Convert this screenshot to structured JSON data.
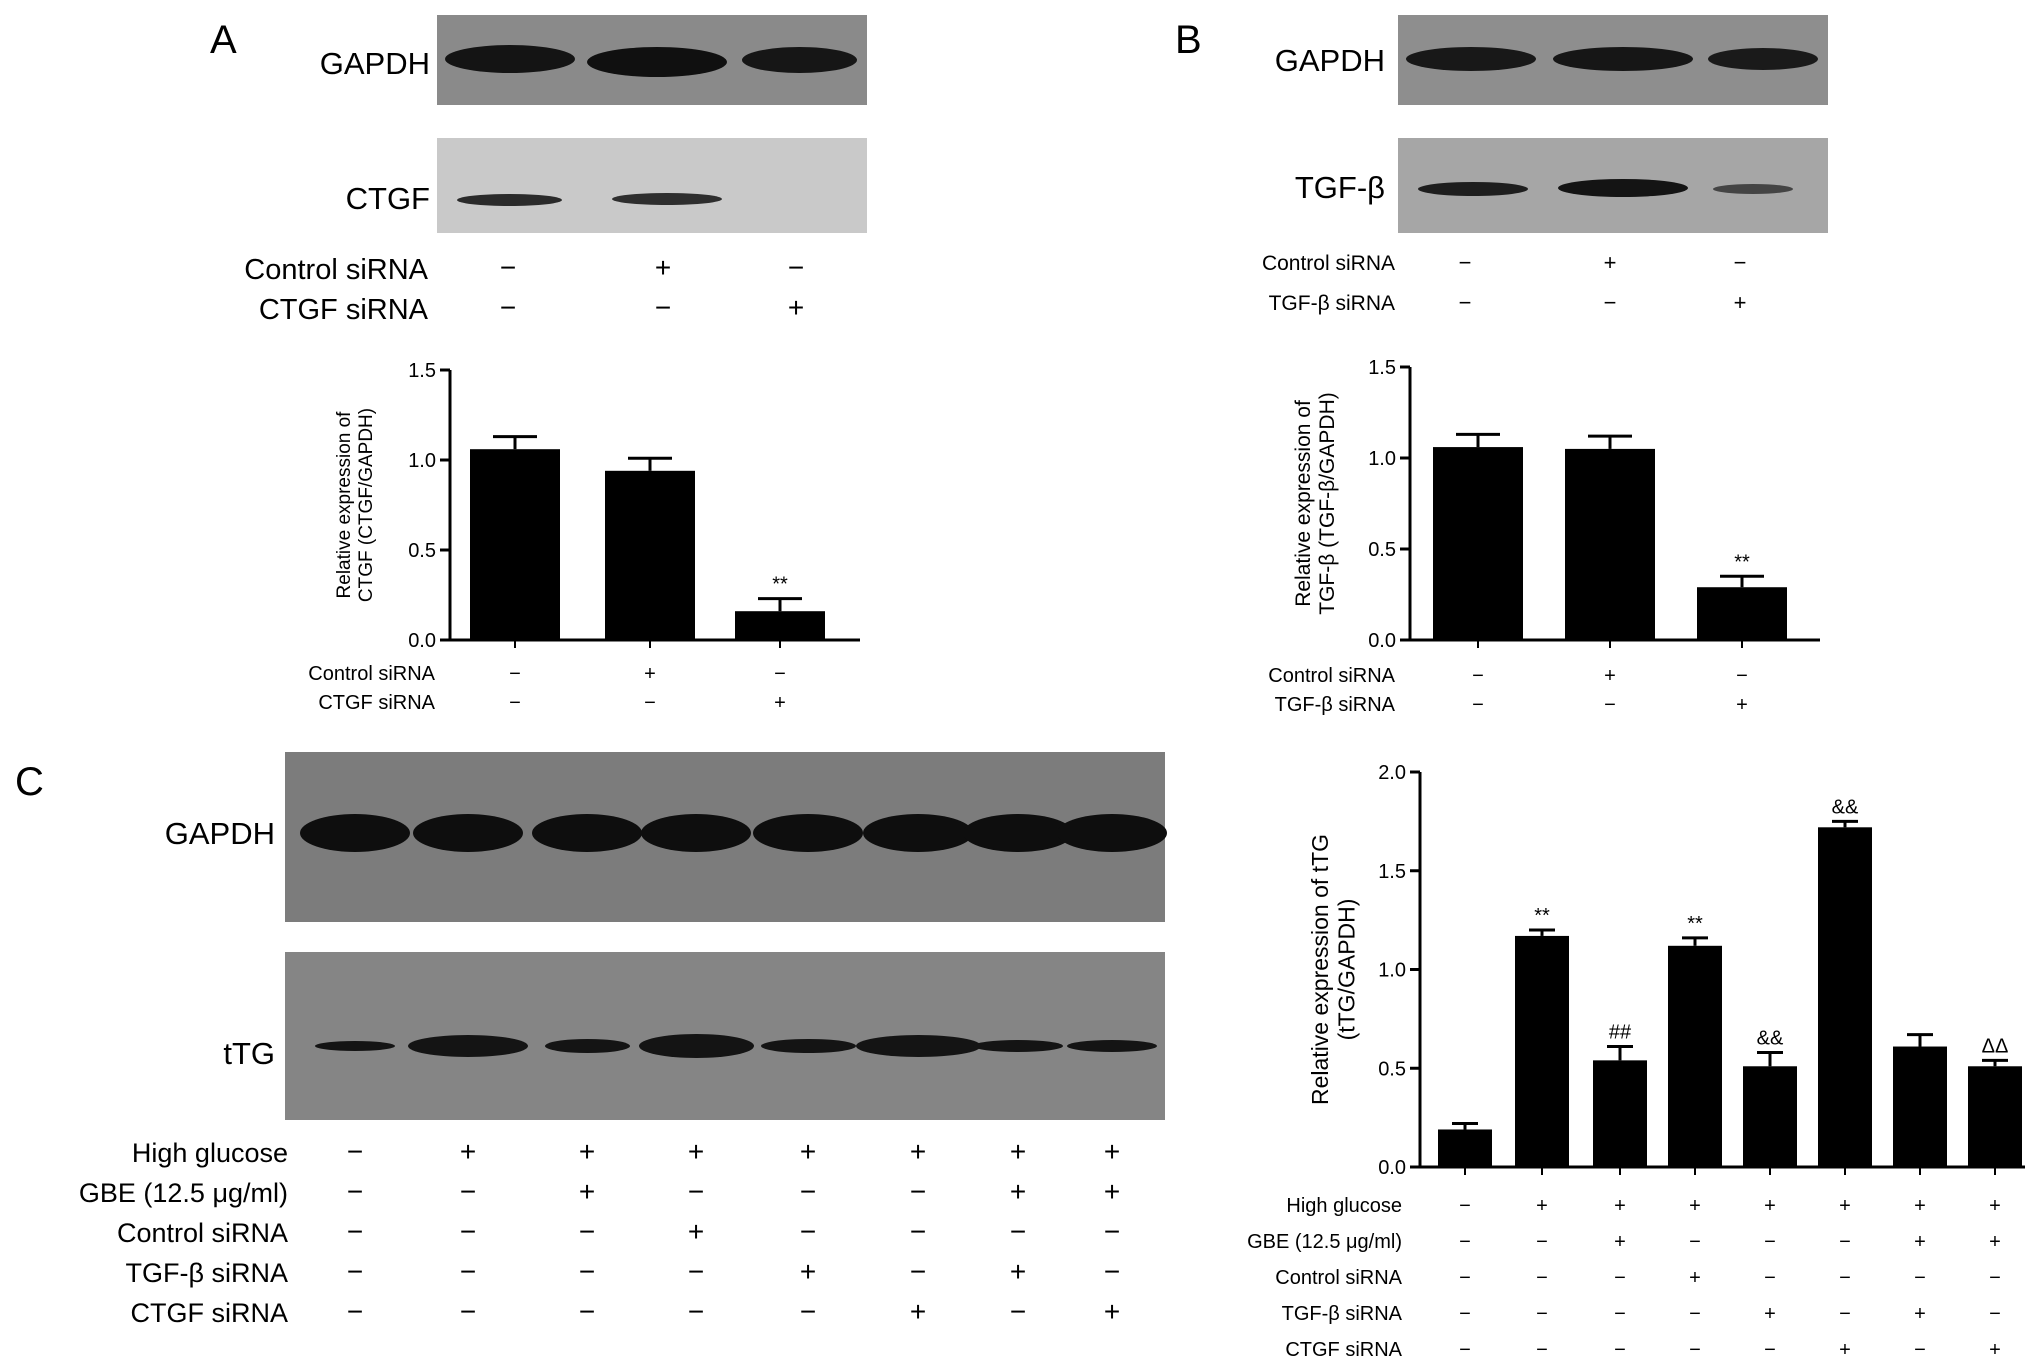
{
  "panels": {
    "A": {
      "letter": "A",
      "blot_labels": [
        "GAPDH",
        "CTGF"
      ],
      "conditions": [
        {
          "label": "Control siRNA",
          "signs": [
            "−",
            "+",
            "−"
          ]
        },
        {
          "label": "CTGF siRNA",
          "signs": [
            "−",
            "−",
            "+"
          ]
        }
      ]
    },
    "B": {
      "letter": "B",
      "blot_labels": [
        "GAPDH",
        "TGF-β"
      ],
      "conditions": [
        {
          "label": "Control siRNA",
          "signs": [
            "−",
            "+",
            "−"
          ]
        },
        {
          "label": "TGF-β siRNA",
          "signs": [
            "−",
            "−",
            "+"
          ]
        }
      ]
    },
    "C": {
      "letter": "C",
      "blot_labels": [
        "GAPDH",
        "tTG"
      ],
      "conditions": [
        {
          "label": "High glucose",
          "signs": [
            "−",
            "+",
            "+",
            "+",
            "+",
            "+",
            "+",
            "+"
          ]
        },
        {
          "label": "GBE (12.5 μg/ml)",
          "signs": [
            "−",
            "−",
            "+",
            "−",
            "−",
            "−",
            "+",
            "+"
          ]
        },
        {
          "label": "Control siRNA",
          "signs": [
            "−",
            "−",
            "−",
            "+",
            "−",
            "−",
            "−",
            "−"
          ]
        },
        {
          "label": "TGF-β siRNA",
          "signs": [
            "−",
            "−",
            "−",
            "−",
            "+",
            "−",
            "+",
            "−"
          ]
        },
        {
          "label": "CTGF siRNA",
          "signs": [
            "−",
            "−",
            "−",
            "−",
            "−",
            "+",
            "−",
            "+"
          ]
        }
      ]
    }
  },
  "chart_data": [
    {
      "type": "bar",
      "panel": "A",
      "ylabel_lines": [
        "Relative expression of",
        "CTGF (CTGF/GAPDH)"
      ],
      "ylim": [
        0,
        1.5
      ],
      "yticks": [
        "0.0",
        "0.5",
        "1.0",
        "1.5"
      ],
      "values": [
        1.06,
        0.94,
        0.16
      ],
      "errors": [
        0.07,
        0.07,
        0.07
      ],
      "annotations": [
        "",
        "",
        "**"
      ],
      "color": "#000000",
      "conditions": [
        {
          "label": "Control siRNA",
          "signs": [
            "−",
            "+",
            "−"
          ]
        },
        {
          "label": "CTGF siRNA",
          "signs": [
            "−",
            "−",
            "+"
          ]
        }
      ]
    },
    {
      "type": "bar",
      "panel": "B",
      "ylabel_lines": [
        "Relative expression of",
        "TGF-β (TGF-β/GAPDH)"
      ],
      "ylim": [
        0,
        1.5
      ],
      "yticks": [
        "0.0",
        "0.5",
        "1.0",
        "1.5"
      ],
      "values": [
        1.06,
        1.05,
        0.29
      ],
      "errors": [
        0.07,
        0.07,
        0.06
      ],
      "annotations": [
        "",
        "",
        "**"
      ],
      "color": "#000000",
      "conditions": [
        {
          "label": "Control siRNA",
          "signs": [
            "−",
            "+",
            "−"
          ]
        },
        {
          "label": "TGF-β siRNA",
          "signs": [
            "−",
            "−",
            "+"
          ]
        }
      ]
    },
    {
      "type": "bar",
      "panel": "C",
      "ylabel_lines": [
        "Relative expression of tTG",
        "(tTG/GAPDH)"
      ],
      "ylim": [
        0,
        2.0
      ],
      "yticks": [
        "0.0",
        "0.5",
        "1.0",
        "1.5",
        "2.0"
      ],
      "values": [
        0.19,
        1.17,
        0.54,
        1.12,
        0.51,
        1.72,
        0.61,
        0.51
      ],
      "errors": [
        0.03,
        0.03,
        0.07,
        0.04,
        0.07,
        0.03,
        0.06,
        0.03
      ],
      "annotations": [
        "",
        "**",
        "##",
        "**",
        "&&",
        "&&",
        "",
        "ΔΔ"
      ],
      "color": "#000000",
      "conditions": [
        {
          "label": "High glucose",
          "signs": [
            "−",
            "+",
            "+",
            "+",
            "+",
            "+",
            "+",
            "+"
          ]
        },
        {
          "label": "GBE (12.5 μg/ml)",
          "signs": [
            "−",
            "−",
            "+",
            "−",
            "−",
            "−",
            "+",
            "+"
          ]
        },
        {
          "label": "Control siRNA",
          "signs": [
            "−",
            "−",
            "−",
            "+",
            "−",
            "−",
            "−",
            "−"
          ]
        },
        {
          "label": "TGF-β siRNA",
          "signs": [
            "−",
            "−",
            "−",
            "−",
            "+",
            "−",
            "+",
            "−"
          ]
        },
        {
          "label": "CTGF siRNA",
          "signs": [
            "−",
            "−",
            "−",
            "−",
            "−",
            "+",
            "−",
            "+"
          ]
        }
      ]
    }
  ]
}
